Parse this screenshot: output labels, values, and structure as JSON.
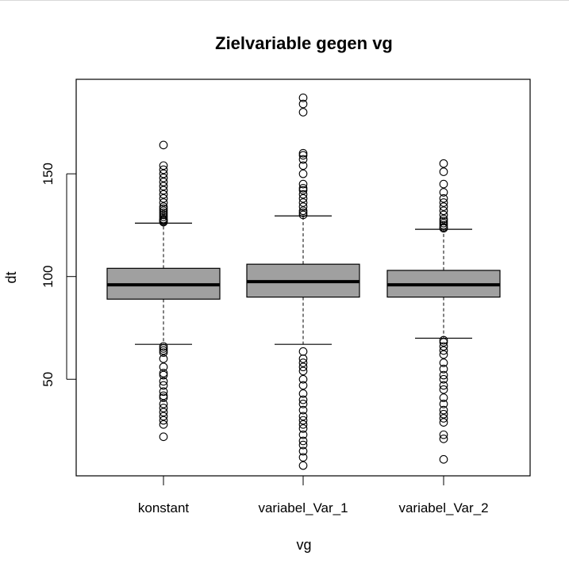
{
  "chart_data": {
    "type": "boxplot",
    "title": "Zielvariable gegen vg",
    "xlabel": "vg",
    "ylabel": "dt",
    "categories": [
      "konstant",
      "variabel_Var_1",
      "variabel_Var_2"
    ],
    "ylim": [
      3,
      196
    ],
    "yticks": [
      50,
      100,
      150
    ],
    "colors": {
      "box_fill": "#a0a0a0",
      "stroke": "#000000"
    },
    "boxes": [
      {
        "name": "konstant",
        "whisker_low": 67,
        "q1": 89,
        "median": 96,
        "q3": 104,
        "whisker_high": 126,
        "outliers_high": [
          126.5,
          127,
          127.5,
          128,
          129,
          130,
          131,
          132,
          133,
          134,
          136,
          138,
          140,
          142,
          144,
          146,
          148,
          150,
          152,
          154,
          164
        ],
        "outliers_low": [
          66,
          65,
          64,
          63,
          60,
          56,
          53,
          52,
          49,
          47,
          44,
          42,
          41,
          38,
          36,
          34,
          32,
          30,
          28,
          22
        ]
      },
      {
        "name": "variabel_Var_1",
        "whisker_low": 67,
        "q1": 90,
        "median": 97.5,
        "q3": 106,
        "whisker_high": 129.5,
        "outliers_high": [
          130,
          131,
          132,
          134,
          136,
          138,
          140,
          142,
          143,
          145,
          150,
          154,
          157,
          159,
          160,
          180,
          184,
          187
        ],
        "outliers_low": [
          63.5,
          60,
          58,
          56,
          54,
          50,
          47,
          43,
          40,
          38,
          35,
          32,
          30,
          28,
          26,
          23,
          20,
          18,
          15,
          12,
          8
        ]
      },
      {
        "name": "variabel_Var_2",
        "whisker_low": 70,
        "q1": 90,
        "median": 96,
        "q3": 103,
        "whisker_high": 123,
        "outliers_high": [
          123.5,
          124,
          125,
          126,
          127,
          128,
          130,
          132,
          134,
          136,
          138,
          141,
          145,
          151,
          155
        ],
        "outliers_low": [
          69,
          68,
          66,
          64,
          62,
          58,
          55,
          52,
          50,
          47,
          45,
          41,
          38,
          35,
          33,
          31,
          29,
          23,
          21,
          11
        ]
      }
    ]
  }
}
